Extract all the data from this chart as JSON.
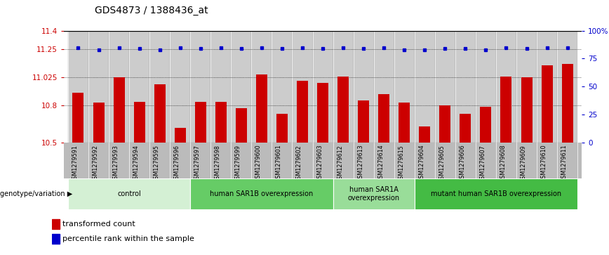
{
  "title": "GDS4873 / 1388436_at",
  "samples": [
    "GSM1279591",
    "GSM1279592",
    "GSM1279593",
    "GSM1279594",
    "GSM1279595",
    "GSM1279596",
    "GSM1279597",
    "GSM1279598",
    "GSM1279599",
    "GSM1279600",
    "GSM1279601",
    "GSM1279602",
    "GSM1279603",
    "GSM1279612",
    "GSM1279613",
    "GSM1279614",
    "GSM1279615",
    "GSM1279604",
    "GSM1279605",
    "GSM1279606",
    "GSM1279607",
    "GSM1279608",
    "GSM1279609",
    "GSM1279610",
    "GSM1279611"
  ],
  "bar_values": [
    10.9,
    10.82,
    11.025,
    10.83,
    10.97,
    10.62,
    10.83,
    10.83,
    10.78,
    11.05,
    10.73,
    11.0,
    10.98,
    11.03,
    10.84,
    10.89,
    10.82,
    10.63,
    10.8,
    10.73,
    10.79,
    11.03,
    11.025,
    11.12,
    11.13
  ],
  "percentile_values": [
    85,
    83,
    85,
    84,
    83,
    85,
    84,
    85,
    84,
    85,
    84,
    85,
    84,
    85,
    84,
    85,
    83,
    83,
    84,
    84,
    83,
    85,
    84,
    85,
    85
  ],
  "groups": [
    {
      "label": "control",
      "start": 0,
      "end": 6,
      "color": "#d4f0d4"
    },
    {
      "label": "human SAR1B overexpression",
      "start": 6,
      "end": 13,
      "color": "#66cc66"
    },
    {
      "label": "human SAR1A\noverexpression",
      "start": 13,
      "end": 17,
      "color": "#99dd99"
    },
    {
      "label": "mutant human SAR1B overexpression",
      "start": 17,
      "end": 25,
      "color": "#44bb44"
    }
  ],
  "ylim_left": [
    10.5,
    11.4
  ],
  "ylim_right": [
    0,
    100
  ],
  "yticks_left": [
    10.5,
    10.8,
    11.025,
    11.25,
    11.4
  ],
  "ytick_labels_left": [
    "10.5",
    "10.8",
    "11.025",
    "11.25",
    "11.4"
  ],
  "yticks_right": [
    0,
    25,
    50,
    75,
    100
  ],
  "ytick_labels_right": [
    "0",
    "25",
    "50",
    "75",
    "100%"
  ],
  "bar_color": "#cc0000",
  "dot_color": "#0000cc",
  "genotype_label": "genotype/variation",
  "legend_bar_label": "transformed count",
  "legend_dot_label": "percentile rank within the sample"
}
